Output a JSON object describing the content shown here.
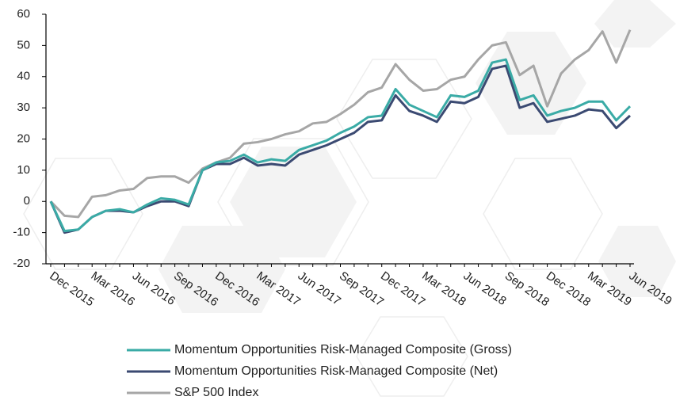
{
  "chart_data": {
    "type": "line",
    "categories": [
      "Dec 2015",
      null,
      null,
      "Mar 2016",
      null,
      null,
      "Jun 2016",
      null,
      null,
      "Sep 2016",
      null,
      null,
      "Dec 2016",
      null,
      null,
      "Mar 2017",
      null,
      null,
      "Jun 2017",
      null,
      null,
      "Sep 2017",
      null,
      null,
      "Dec 2017",
      null,
      null,
      "Mar 2018",
      null,
      null,
      "Jun 2018",
      null,
      null,
      "Sep 2018",
      null,
      null,
      "Dec 2018",
      null,
      null,
      "Mar 2019",
      null,
      null,
      "Jun 2019"
    ],
    "series": [
      {
        "name": "Momentum Opportunities Risk-Managed Composite (Gross)",
        "color": "#3aaba6",
        "values": [
          0,
          -9.5,
          -9,
          -5,
          -3,
          -2.5,
          -3.5,
          -1,
          1,
          0.5,
          -1,
          10,
          12.5,
          13,
          15,
          12.5,
          13.5,
          13,
          16.5,
          18,
          19.5,
          22,
          24,
          27,
          27.5,
          36,
          31,
          29,
          27,
          34,
          33.5,
          35.5,
          44.5,
          45.5,
          32.5,
          34,
          27.5,
          29,
          30,
          32,
          32,
          26,
          30.5
        ]
      },
      {
        "name": "Momentum Opportunities Risk-Managed Composite (Net)",
        "color": "#3b4a72",
        "values": [
          0,
          -10,
          -9,
          -5,
          -3,
          -3,
          -3.5,
          -1.5,
          0,
          0,
          -1.5,
          10,
          12,
          12,
          14,
          11.5,
          12,
          11.5,
          15,
          16.5,
          18,
          20,
          22,
          25.5,
          26,
          34,
          29,
          27.5,
          25.5,
          32,
          31.5,
          33.5,
          42.5,
          43.5,
          30,
          31.5,
          25.5,
          26.5,
          27.5,
          29.5,
          29,
          23.5,
          27.5
        ]
      },
      {
        "name": "S&P 500 Index",
        "color": "#a6a6a6",
        "values": [
          0,
          -4.6,
          -5,
          1.5,
          2,
          3.5,
          4,
          7.5,
          8,
          8,
          6,
          10.5,
          12.5,
          14,
          18.5,
          19,
          20,
          21.5,
          22.5,
          25,
          25.5,
          28,
          31,
          35,
          36.5,
          44,
          39,
          35.5,
          36,
          39,
          40,
          45.5,
          50,
          51,
          40.5,
          43.5,
          30.5,
          41,
          45.5,
          48.5,
          54.5,
          44.5,
          55
        ]
      }
    ],
    "ylim": [
      -20,
      60
    ],
    "yticks": [
      -20,
      -10,
      0,
      10,
      20,
      30,
      40,
      50,
      60
    ]
  }
}
